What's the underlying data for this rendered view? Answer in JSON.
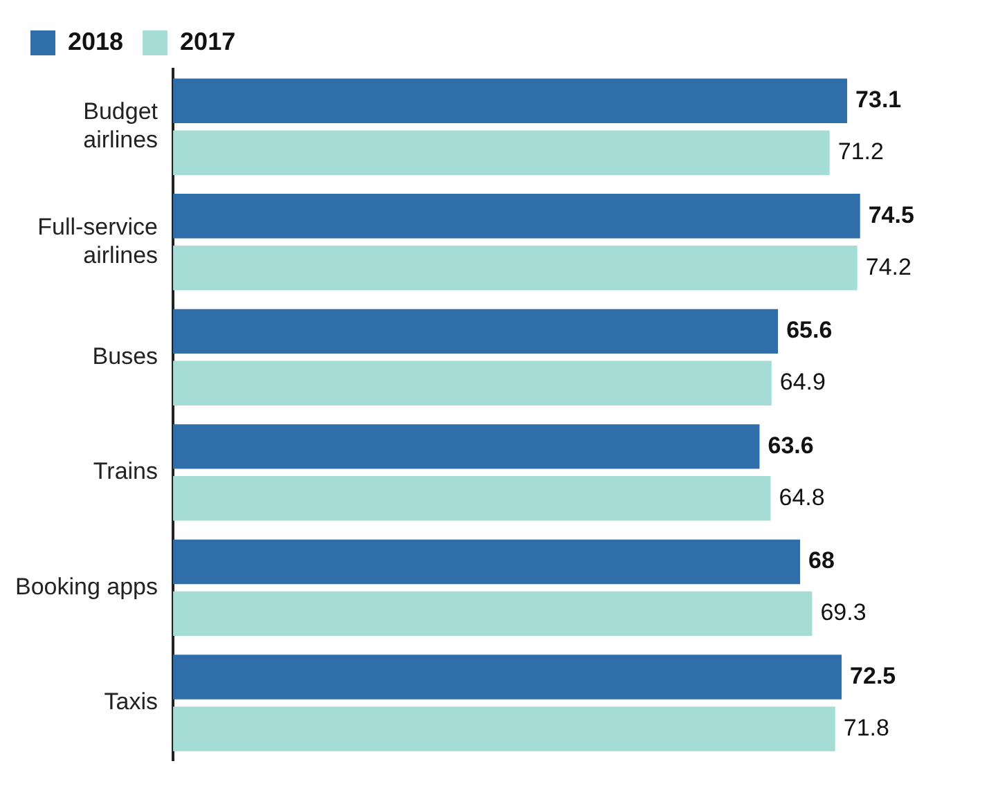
{
  "chart_data": {
    "type": "bar",
    "orientation": "horizontal",
    "categories": [
      "Budget airlines",
      "Full-service airlines",
      "Buses",
      "Trains",
      "Booking apps",
      "Taxis"
    ],
    "series": [
      {
        "name": "2018",
        "color": "#2f6ea8",
        "values": [
          73.1,
          74.5,
          65.6,
          63.6,
          68,
          72.5
        ]
      },
      {
        "name": "2017",
        "color": "#a6dcd6",
        "values": [
          71.2,
          74.2,
          64.9,
          64.8,
          69.3,
          71.8
        ]
      }
    ],
    "data_labels": true,
    "legend": "top left"
  }
}
